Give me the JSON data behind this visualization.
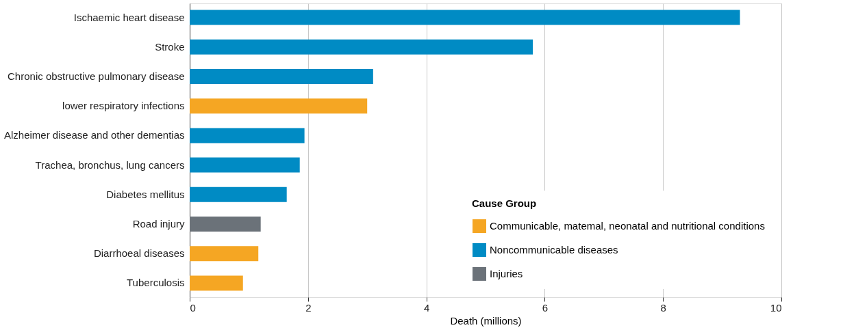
{
  "chart_data": {
    "type": "bar",
    "orientation": "horizontal",
    "xlabel": "Death (millions)",
    "legend_title": "Cause Group",
    "categories": [
      "Ischaemic heart disease",
      "Stroke",
      "Chronic obstructive pulmonary disease",
      "lower respiratory infections",
      "Alzheimer disease and other dementias",
      "Trachea, bronchus, lung cancers",
      "Diabetes mellitus",
      "Road injury",
      "Diarrhoeal diseases",
      "Tuberculosis"
    ],
    "series": [
      {
        "name": "Communicable, matemal, neonatal and nutritional conditions",
        "color": "#f5a623",
        "values": [
          null,
          null,
          null,
          3.0,
          null,
          null,
          null,
          null,
          1.16,
          0.9
        ]
      },
      {
        "name": "Noncommunicable diseases",
        "color": "#008bc4",
        "values": [
          9.3,
          5.8,
          3.1,
          null,
          1.94,
          1.86,
          1.64,
          null,
          null,
          null
        ]
      },
      {
        "name": "Injuries",
        "color": "#6b7279",
        "values": [
          null,
          null,
          null,
          null,
          null,
          null,
          null,
          1.2,
          null,
          null
        ]
      }
    ],
    "xlim": [
      0,
      10
    ],
    "xticks": [
      0,
      2,
      4,
      6,
      8,
      10
    ],
    "grid": "x",
    "legend": "bottom right"
  }
}
